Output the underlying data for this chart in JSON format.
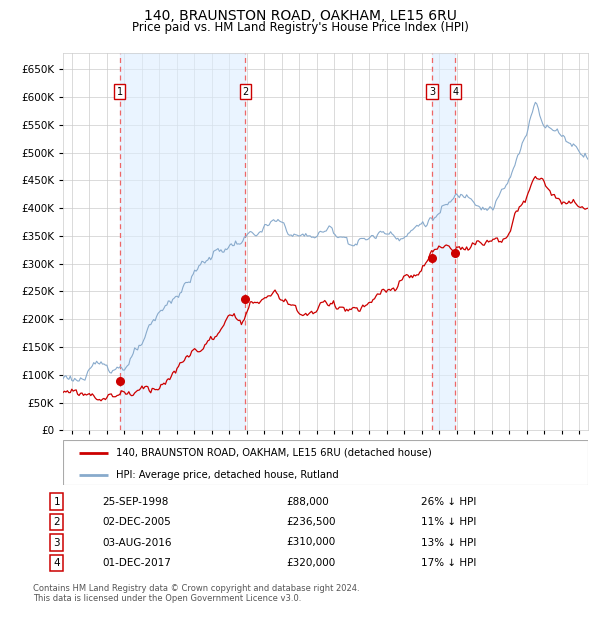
{
  "title1": "140, BRAUNSTON ROAD, OAKHAM, LE15 6RU",
  "title2": "Price paid vs. HM Land Registry's House Price Index (HPI)",
  "red_label": "140, BRAUNSTON ROAD, OAKHAM, LE15 6RU (detached house)",
  "blue_label": "HPI: Average price, detached house, Rutland",
  "footer1": "Contains HM Land Registry data © Crown copyright and database right 2024.",
  "footer2": "This data is licensed under the Open Government Licence v3.0.",
  "sales": [
    {
      "num": "1",
      "date": "25-SEP-1998",
      "price": "£88,000",
      "hpi_note": "26% ↓ HPI",
      "x_year": 1998.73
    },
    {
      "num": "2",
      "date": "02-DEC-2005",
      "price": "£236,500",
      "hpi_note": "11% ↓ HPI",
      "x_year": 2005.92
    },
    {
      "num": "3",
      "date": "03-AUG-2016",
      "price": "£310,000",
      "hpi_note": "13% ↓ HPI",
      "x_year": 2016.59
    },
    {
      "num": "4",
      "date": "01-DEC-2017",
      "price": "£320,000",
      "hpi_note": "17% ↓ HPI",
      "x_year": 2017.92
    }
  ],
  "sale_dot_prices": [
    88000,
    236500,
    310000,
    320000
  ],
  "red_color": "#cc0000",
  "blue_color": "#88aacc",
  "vline_color": "#ee6666",
  "bg_shade_color": "#ddeeff",
  "ylim": [
    0,
    680000
  ],
  "xlim_start": 1995.5,
  "xlim_end": 2025.5,
  "yticks": [
    0,
    50000,
    100000,
    150000,
    200000,
    250000,
    300000,
    350000,
    400000,
    450000,
    500000,
    550000,
    600000,
    650000
  ]
}
